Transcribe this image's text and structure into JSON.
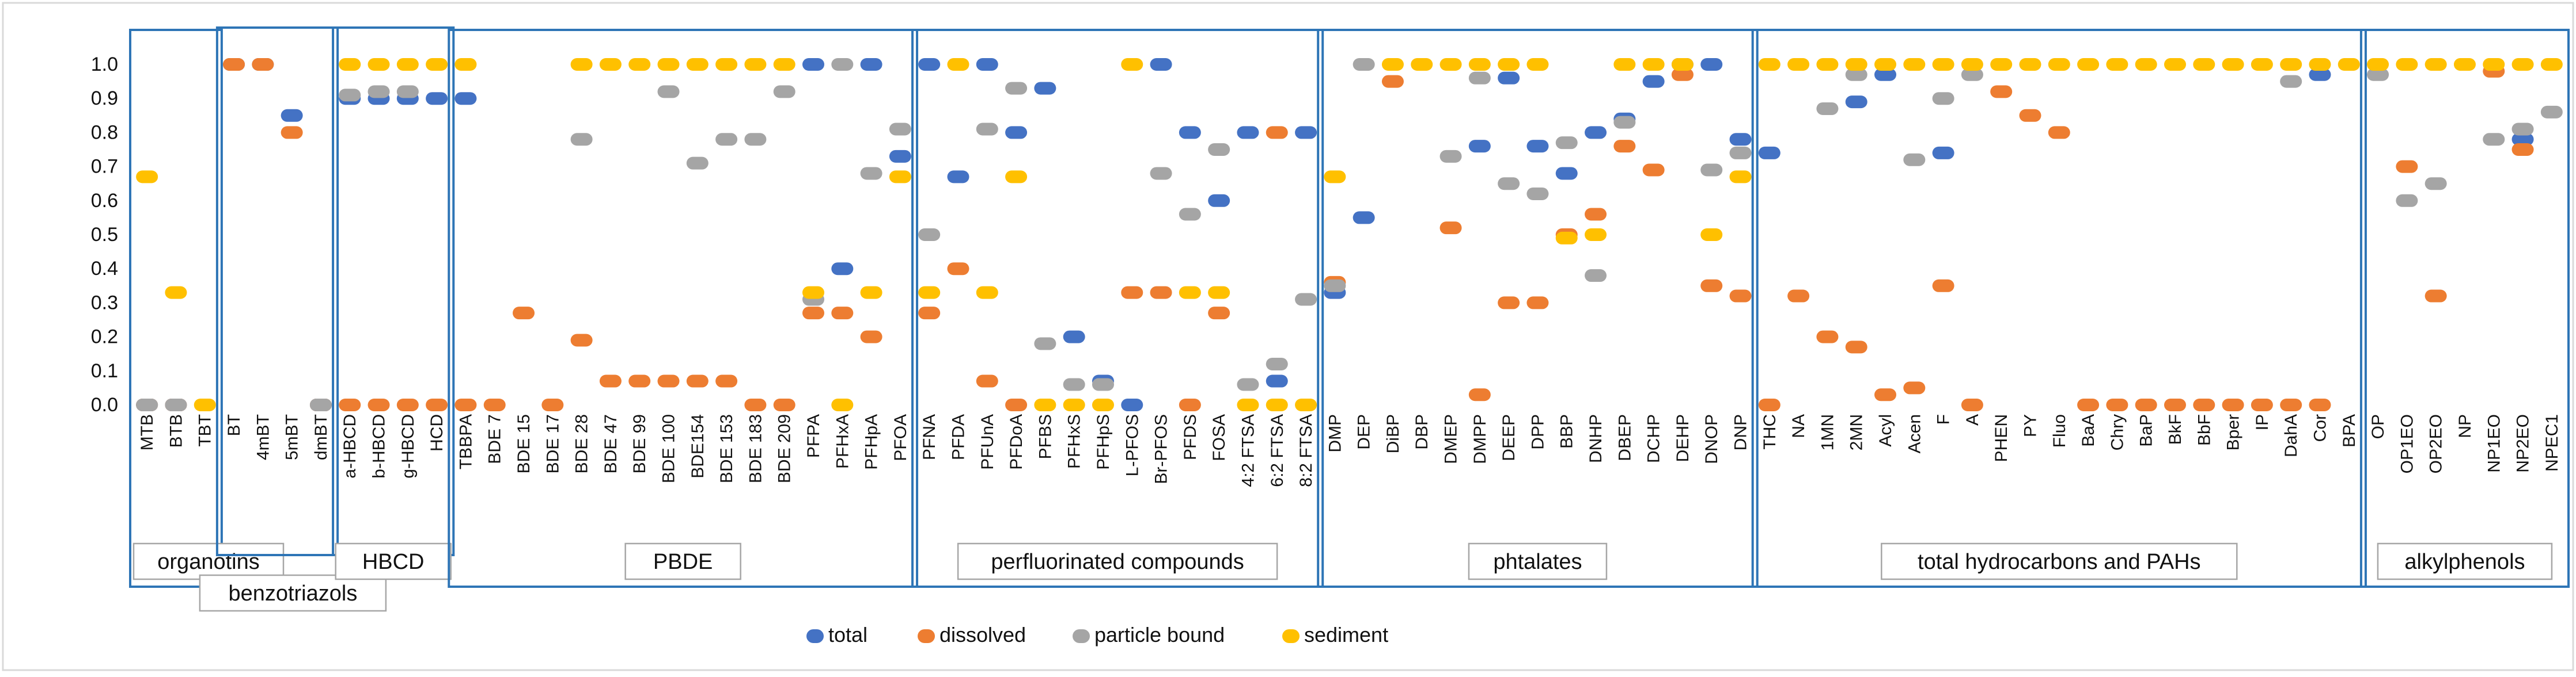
{
  "chart_data": {
    "type": "scatter",
    "ylim": [
      0,
      1
    ],
    "yticks": [
      "0.0",
      "0.1",
      "0.2",
      "0.3",
      "0.4",
      "0.5",
      "0.6",
      "0.7",
      "0.8",
      "0.9",
      "1.0"
    ],
    "categories": [
      "MTB",
      "BTB",
      "TBT",
      "BT",
      "4mBT",
      "5mBT",
      "dmBT",
      "a-HBCD",
      "b-HBCD",
      "g-HBCD",
      "HCD",
      "TBBPA",
      "BDE 7",
      "BDE 15",
      "BDE 17",
      "BDE 28",
      "BDE 47",
      "BDE 99",
      "BDE 100",
      "BDE154",
      "BDE 153",
      "BDE 183",
      "BDE 209",
      "PFPA",
      "PFHxA",
      "PFHpA",
      "PFOA",
      "PFNA",
      "PFDA",
      "PFUnA",
      "PFDoA",
      "PFBS",
      "PFHxS",
      "PFHpS",
      "L-PFOS",
      "Br-PFOS",
      "PFDS",
      "FOSA",
      "4:2 FTSA",
      "6:2 FTSA",
      "8:2 FTSA",
      "DMP",
      "DEP",
      "DiBP",
      "DBP",
      "DMEP",
      "DMPP",
      "DEEP",
      "DPP",
      "BBP",
      "DNHP",
      "DBEP",
      "DCHP",
      "DEHP",
      "DNOP",
      "DNP",
      "THC",
      "NA",
      "1MN",
      "2MN",
      "Acyl",
      "Acen",
      "F",
      "A",
      "PHEN",
      "PY",
      "Fluo",
      "BaA",
      "Chry",
      "BaP",
      "BkF",
      "BbF",
      "Bper",
      "IP",
      "DahA",
      "Cor",
      "BPA",
      "OP",
      "OP1EO",
      "OP2EO",
      "NP",
      "NP1EO",
      "NP2EO",
      "NPEC1"
    ],
    "series": [
      {
        "name": "total",
        "color": "#4472C4",
        "values": [
          0,
          0,
          null,
          1,
          1,
          0.85,
          0,
          0.9,
          0.9,
          0.9,
          0.9,
          0.9,
          null,
          null,
          null,
          null,
          null,
          null,
          null,
          null,
          null,
          null,
          null,
          1,
          0.4,
          1,
          0.73,
          1,
          0.67,
          1,
          0.8,
          0.93,
          0.2,
          0.07,
          0,
          1,
          0.8,
          0.6,
          0.8,
          0.07,
          0.8,
          0.33,
          0.55,
          null,
          null,
          null,
          0.76,
          0.96,
          0.76,
          0.68,
          0.8,
          0.84,
          0.95,
          1,
          1,
          0.78,
          0.74,
          null,
          null,
          0.89,
          0.97,
          null,
          0.74,
          null,
          null,
          null,
          null,
          null,
          null,
          null,
          null,
          null,
          null,
          null,
          null,
          0.97,
          null,
          null,
          null,
          null,
          null,
          null,
          0.78,
          null
        ]
      },
      {
        "name": "dissolved",
        "color": "#ED7D31",
        "values": [
          0,
          0,
          null,
          1,
          1,
          0.8,
          0,
          0,
          0,
          0,
          0,
          0,
          0,
          0.27,
          0,
          0.19,
          0.07,
          0.07,
          0.07,
          0.07,
          0.07,
          0,
          0,
          0.27,
          0.27,
          0.2,
          null,
          0.27,
          0.4,
          0.07,
          0,
          null,
          null,
          null,
          0.33,
          0.33,
          0,
          0.27,
          null,
          0.8,
          null,
          0.36,
          null,
          0.95,
          null,
          0.52,
          0.03,
          0.3,
          0.3,
          0.5,
          0.56,
          0.76,
          0.69,
          0.97,
          0.35,
          0.32,
          0,
          0.32,
          0.2,
          0.17,
          0.03,
          0.05,
          0.35,
          0,
          0.92,
          0.85,
          0.8,
          0,
          0,
          0,
          0,
          0,
          0,
          0,
          0,
          0,
          null,
          null,
          0.7,
          0.32,
          null,
          0.98,
          0.75,
          null
        ]
      },
      {
        "name": "particle bound",
        "color": "#A5A5A5",
        "values": [
          0,
          0,
          null,
          null,
          null,
          null,
          0,
          0.91,
          0.92,
          0.92,
          null,
          null,
          null,
          null,
          null,
          0.78,
          null,
          null,
          0.92,
          0.71,
          0.78,
          0.78,
          0.92,
          0.31,
          1,
          0.68,
          0.81,
          0.5,
          null,
          0.81,
          0.93,
          0.18,
          0.06,
          0.06,
          null,
          0.68,
          0.56,
          0.75,
          0.06,
          0.12,
          0.31,
          0.35,
          1,
          null,
          null,
          0.73,
          0.96,
          0.65,
          0.62,
          0.77,
          0.38,
          0.83,
          null,
          null,
          0.69,
          0.74,
          null,
          null,
          0.87,
          0.97,
          null,
          0.72,
          0.9,
          0.97,
          null,
          null,
          null,
          null,
          null,
          null,
          null,
          null,
          null,
          null,
          0.95,
          null,
          null,
          0.97,
          0.6,
          0.65,
          null,
          0.78,
          0.81,
          0.86
        ]
      },
      {
        "name": "sediment",
        "color": "#FFC000",
        "values": [
          0.67,
          0.33,
          0,
          null,
          null,
          null,
          null,
          1,
          1,
          1,
          1,
          1,
          null,
          null,
          null,
          1,
          1,
          1,
          1,
          1,
          1,
          1,
          1,
          0.33,
          0,
          0.33,
          0.67,
          0.33,
          1,
          0.33,
          0.67,
          0,
          0,
          0,
          1,
          null,
          0.33,
          0.33,
          0,
          0,
          0,
          0.67,
          null,
          1,
          1,
          1,
          1,
          1,
          1,
          0.49,
          0.5,
          1,
          1,
          1,
          0.5,
          0.67,
          1,
          1,
          1,
          1,
          1,
          1,
          1,
          1,
          1,
          1,
          1,
          1,
          1,
          1,
          1,
          1,
          1,
          1,
          1,
          1,
          1,
          1,
          1,
          1,
          1,
          1,
          1,
          1
        ]
      }
    ],
    "groups": [
      {
        "label": "organotins",
        "from": 0,
        "to": 2
      },
      {
        "label": "benzotriazols",
        "from": 3,
        "to": 6
      },
      {
        "label": "HBCD",
        "from": 7,
        "to": 10
      },
      {
        "label": "PBDE",
        "from": 11,
        "to": 26
      },
      {
        "label": "perfluorinated compounds",
        "from": 27,
        "to": 40
      },
      {
        "label": "phtalates",
        "from": 41,
        "to": 55
      },
      {
        "label": "total hydrocarbons and PAHs",
        "from": 56,
        "to": 76
      },
      {
        "label": "alkylphenols",
        "from": 77,
        "to": 83
      }
    ]
  }
}
